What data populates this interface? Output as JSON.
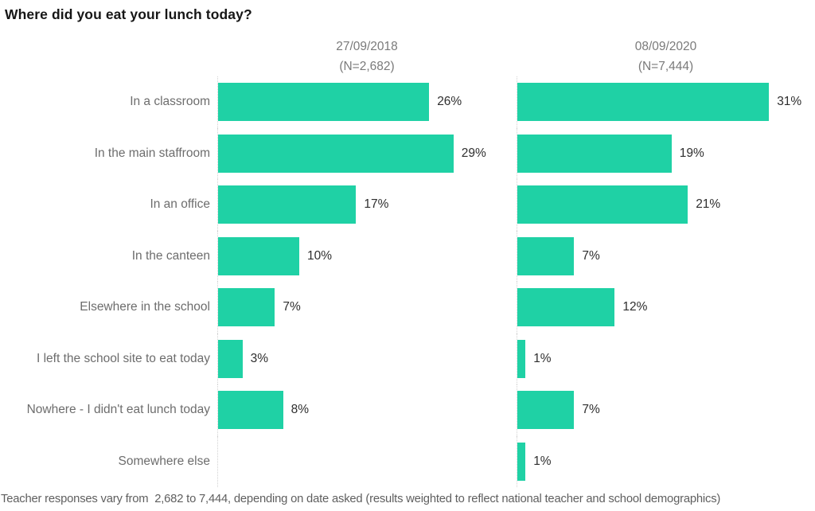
{
  "title": "Where did you eat your lunch today?",
  "footer": "Teacher responses vary from  2,682 to 7,444, depending on date asked (results weighted to reflect national teacher and school demographics)",
  "colors": {
    "bar": "#1fd1a5",
    "title_text": "#161616",
    "category_text": "#6d6d6d",
    "value_text": "#2e2e2e",
    "header_text": "#7a7a7a",
    "footer_text": "#5f5f5f",
    "axis_dotted": "#d2d2d2",
    "background": "#ffffff"
  },
  "chart_data": {
    "type": "bar",
    "orientation": "horizontal",
    "title": "Where did you eat your lunch today?",
    "categories": [
      "In a classroom",
      "In the main staffroom",
      "In an office",
      "In the canteen",
      "Elsewhere in the school",
      "I left the school site to eat today",
      "Nowhere - I didn't eat lunch today",
      "Somewhere else"
    ],
    "series": [
      {
        "name": "27/09/2018",
        "n_label": "(N=2,682)",
        "values": [
          26,
          29,
          17,
          10,
          7,
          3,
          8,
          null
        ]
      },
      {
        "name": "08/09/2020",
        "n_label": "(N=7,444)",
        "values": [
          31,
          19,
          21,
          7,
          12,
          1,
          7,
          1
        ]
      }
    ],
    "value_suffix": "%",
    "xlim": [
      0,
      36.5
    ],
    "grid": false,
    "legend_position": "column-headers",
    "data_labels": true
  }
}
